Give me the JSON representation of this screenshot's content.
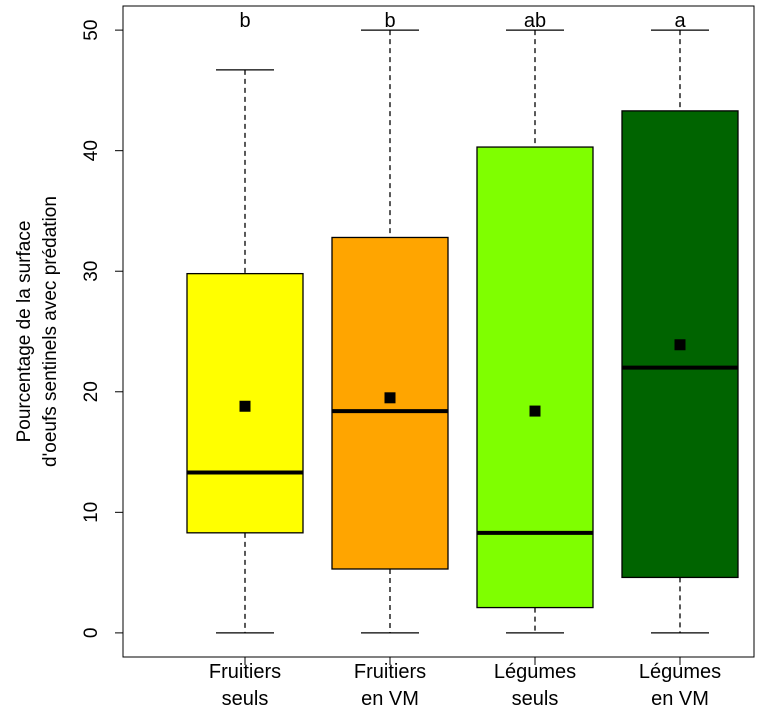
{
  "chart_data": {
    "type": "boxplot",
    "title": "",
    "ylabel_lines": [
      "Pourcentage de la surface",
      "d'oeufs sentinels avec prédation"
    ],
    "xlabel": "",
    "ylim": [
      -2,
      52
    ],
    "yticks": [
      0,
      10,
      20,
      30,
      40,
      50
    ],
    "ytick_labels": [
      "0",
      "10",
      "20",
      "30",
      "40",
      "50"
    ],
    "grid": false,
    "legend": "none",
    "categories": [
      {
        "label_lines": [
          "Fruitiers",
          "seuls"
        ],
        "color": "#ffff00",
        "whisker_low": 0,
        "q1": 8.3,
        "median": 13.3,
        "q3": 29.8,
        "whisker_high": 46.7,
        "mean": 18.8,
        "letter": "b"
      },
      {
        "label_lines": [
          "Fruitiers",
          "en VM"
        ],
        "color": "#ffa500",
        "whisker_low": 0,
        "q1": 5.3,
        "median": 18.4,
        "q3": 32.8,
        "whisker_high": 50,
        "mean": 19.5,
        "letter": "b"
      },
      {
        "label_lines": [
          "Légumes",
          "seuls"
        ],
        "color": "#7fff00",
        "whisker_low": 0,
        "q1": 2.1,
        "median": 8.3,
        "q3": 40.3,
        "whisker_high": 50,
        "mean": 18.4,
        "letter": "ab"
      },
      {
        "label_lines": [
          "Légumes",
          "en VM"
        ],
        "color": "#006400",
        "whisker_low": 0,
        "q1": 4.6,
        "median": 22.0,
        "q3": 43.3,
        "whisker_high": 50,
        "mean": 23.9,
        "letter": "a"
      }
    ]
  }
}
